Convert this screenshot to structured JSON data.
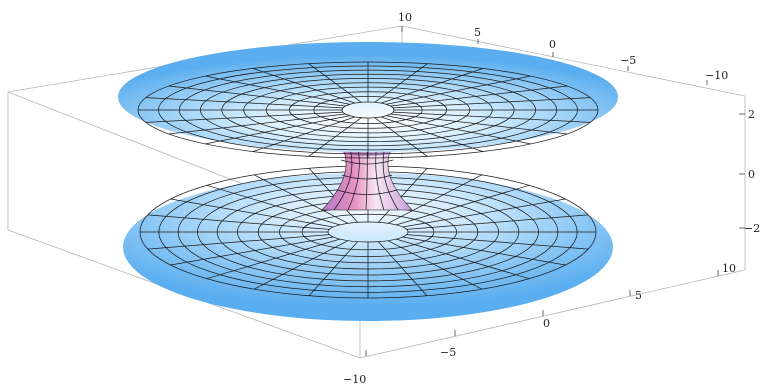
{
  "plot": {
    "type": "surface3d",
    "shape": "wormhole-embedding",
    "colors": {
      "disk_light": "#d9f0ff",
      "disk_mid": "#8fc9f5",
      "disk_edge": "#5aaef0",
      "throat_pink": "#e58fc0",
      "throat_light": "#f7e6f2",
      "mesh": "#1a1a1a"
    },
    "axes": {
      "x_ticks": [
        "10",
        "5",
        "0",
        "−5",
        "−10"
      ],
      "y_ticks": [
        "10",
        "5",
        "0",
        "−5",
        "−10"
      ],
      "z_ticks": [
        "2",
        "0",
        "−2"
      ]
    },
    "mesh_grid": {
      "radial_lines": 24,
      "rings": 9
    }
  }
}
